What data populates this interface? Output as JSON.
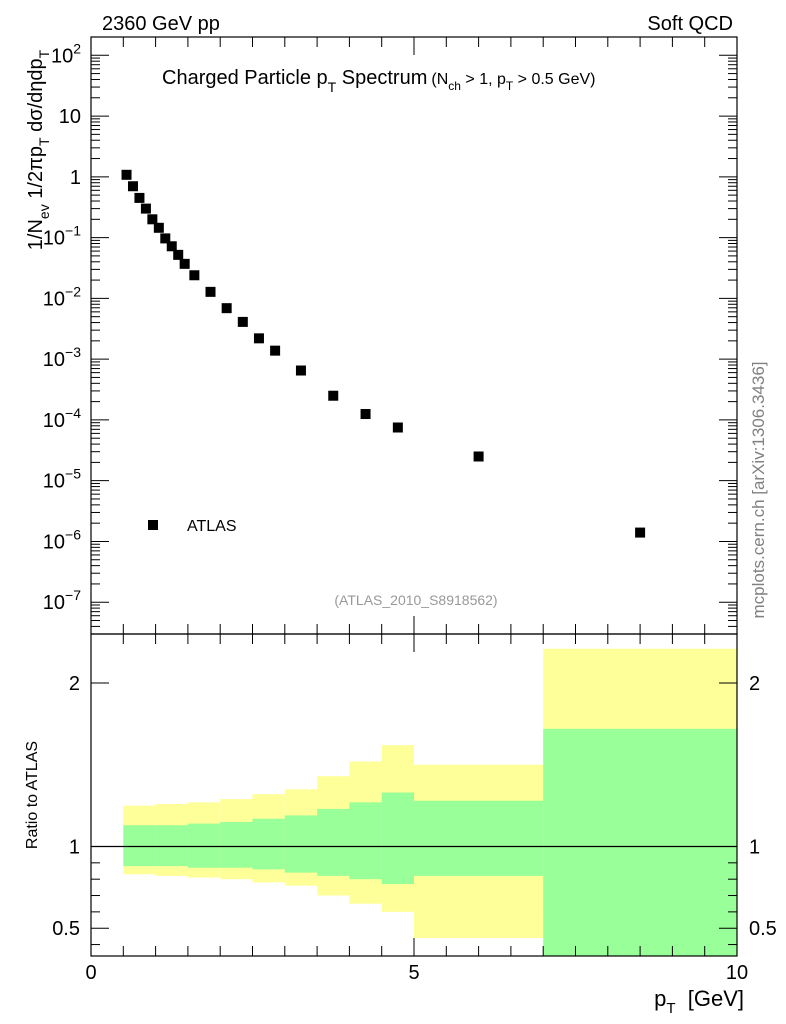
{
  "header": {
    "energy_label": "2360 GeV pp",
    "process_label": "Soft QCD"
  },
  "side_label": "mcplots.cern.ch [arXiv:1306.3436]",
  "chart_data": [
    {
      "type": "scatter",
      "panel": "main",
      "title_main": "Charged Particle p",
      "title_main_sub": "T",
      "title_main_tail": " Spectrum",
      "title_cuts": {
        "p1": "(N",
        "s1": "ch",
        "p2": " > 1, p",
        "s2": "T",
        "p3": " > 0.5 GeV)"
      },
      "analysis_tag": "(ATLAS_2010_S8918562)",
      "ylabel": {
        "p1": "1/N",
        "s1": "ev",
        "p2": " 1/2πp",
        "s2": "T",
        "p3": " dσ/dηdp",
        "s3": "T"
      },
      "yscale": "log",
      "ylim": [
        3e-08,
        200
      ],
      "xlim": [
        0,
        10
      ],
      "y_ticks": [
        {
          "value": 100,
          "label_base": "10",
          "label_exp": "2"
        },
        {
          "value": 10,
          "label_base": "10",
          "label_exp": ""
        },
        {
          "value": 1,
          "label_base": "1",
          "label_exp": ""
        },
        {
          "value": 0.1,
          "label_base": "10",
          "label_exp": "−1"
        },
        {
          "value": 0.01,
          "label_base": "10",
          "label_exp": "−2"
        },
        {
          "value": 0.001,
          "label_base": "10",
          "label_exp": "−3"
        },
        {
          "value": 0.0001,
          "label_base": "10",
          "label_exp": "−4"
        },
        {
          "value": 1e-05,
          "label_base": "10",
          "label_exp": "−5"
        },
        {
          "value": 1e-06,
          "label_base": "10",
          "label_exp": "−6"
        },
        {
          "value": 1e-07,
          "label_base": "10",
          "label_exp": "−7"
        }
      ],
      "legend": {
        "entry": "ATLAS",
        "placement": "bottom-left"
      },
      "series": [
        {
          "name": "ATLAS",
          "x": [
            0.55,
            0.65,
            0.75,
            0.85,
            0.95,
            1.05,
            1.15,
            1.25,
            1.35,
            1.45,
            1.6,
            1.85,
            2.1,
            2.35,
            2.6,
            2.85,
            3.25,
            3.75,
            4.25,
            4.75,
            6.0,
            8.5
          ],
          "y": [
            1.08,
            0.7,
            0.45,
            0.3,
            0.2,
            0.145,
            0.097,
            0.072,
            0.052,
            0.037,
            0.024,
            0.0128,
            0.0069,
            0.0041,
            0.0022,
            0.00138,
            0.00065,
            0.00025,
            0.000125,
            7.5e-05,
            2.5e-05,
            1.4e-06
          ]
        }
      ]
    },
    {
      "type": "area",
      "panel": "ratio",
      "ylabel": "Ratio to ATLAS",
      "xlabel_base": "p",
      "xlabel_sub": "T",
      "xlabel_unit": "  [GeV]",
      "xlim": [
        0,
        10
      ],
      "ylim": [
        0.33,
        2.3
      ],
      "x_ticks": [
        0,
        5,
        10
      ],
      "y_ticks": [
        0.5,
        1,
        2
      ],
      "y_tick_labels": [
        "0.5",
        "1",
        "2"
      ],
      "reference_line": 1,
      "bins": [
        0.5,
        1.0,
        1.5,
        2.0,
        2.5,
        3.0,
        3.5,
        4.0,
        4.5,
        5.0,
        7.0,
        10.0
      ],
      "band_colors": {
        "inner": "#99ff99",
        "outer": "#ffff99"
      },
      "bands": [
        {
          "name": "stat",
          "lower": [
            0.88,
            0.88,
            0.87,
            0.87,
            0.86,
            0.84,
            0.82,
            0.8,
            0.77,
            0.82,
            0.0,
            0.0
          ],
          "upper": [
            1.13,
            1.13,
            1.14,
            1.15,
            1.17,
            1.19,
            1.23,
            1.27,
            1.33,
            1.28,
            1.72,
            1.72
          ]
        },
        {
          "name": "total",
          "lower": [
            0.83,
            0.82,
            0.81,
            0.8,
            0.78,
            0.76,
            0.7,
            0.65,
            0.6,
            0.44,
            0.6,
            0.0
          ],
          "upper": [
            1.25,
            1.26,
            1.27,
            1.29,
            1.32,
            1.35,
            1.43,
            1.52,
            1.62,
            1.5,
            2.21,
            2.21
          ]
        }
      ]
    }
  ]
}
